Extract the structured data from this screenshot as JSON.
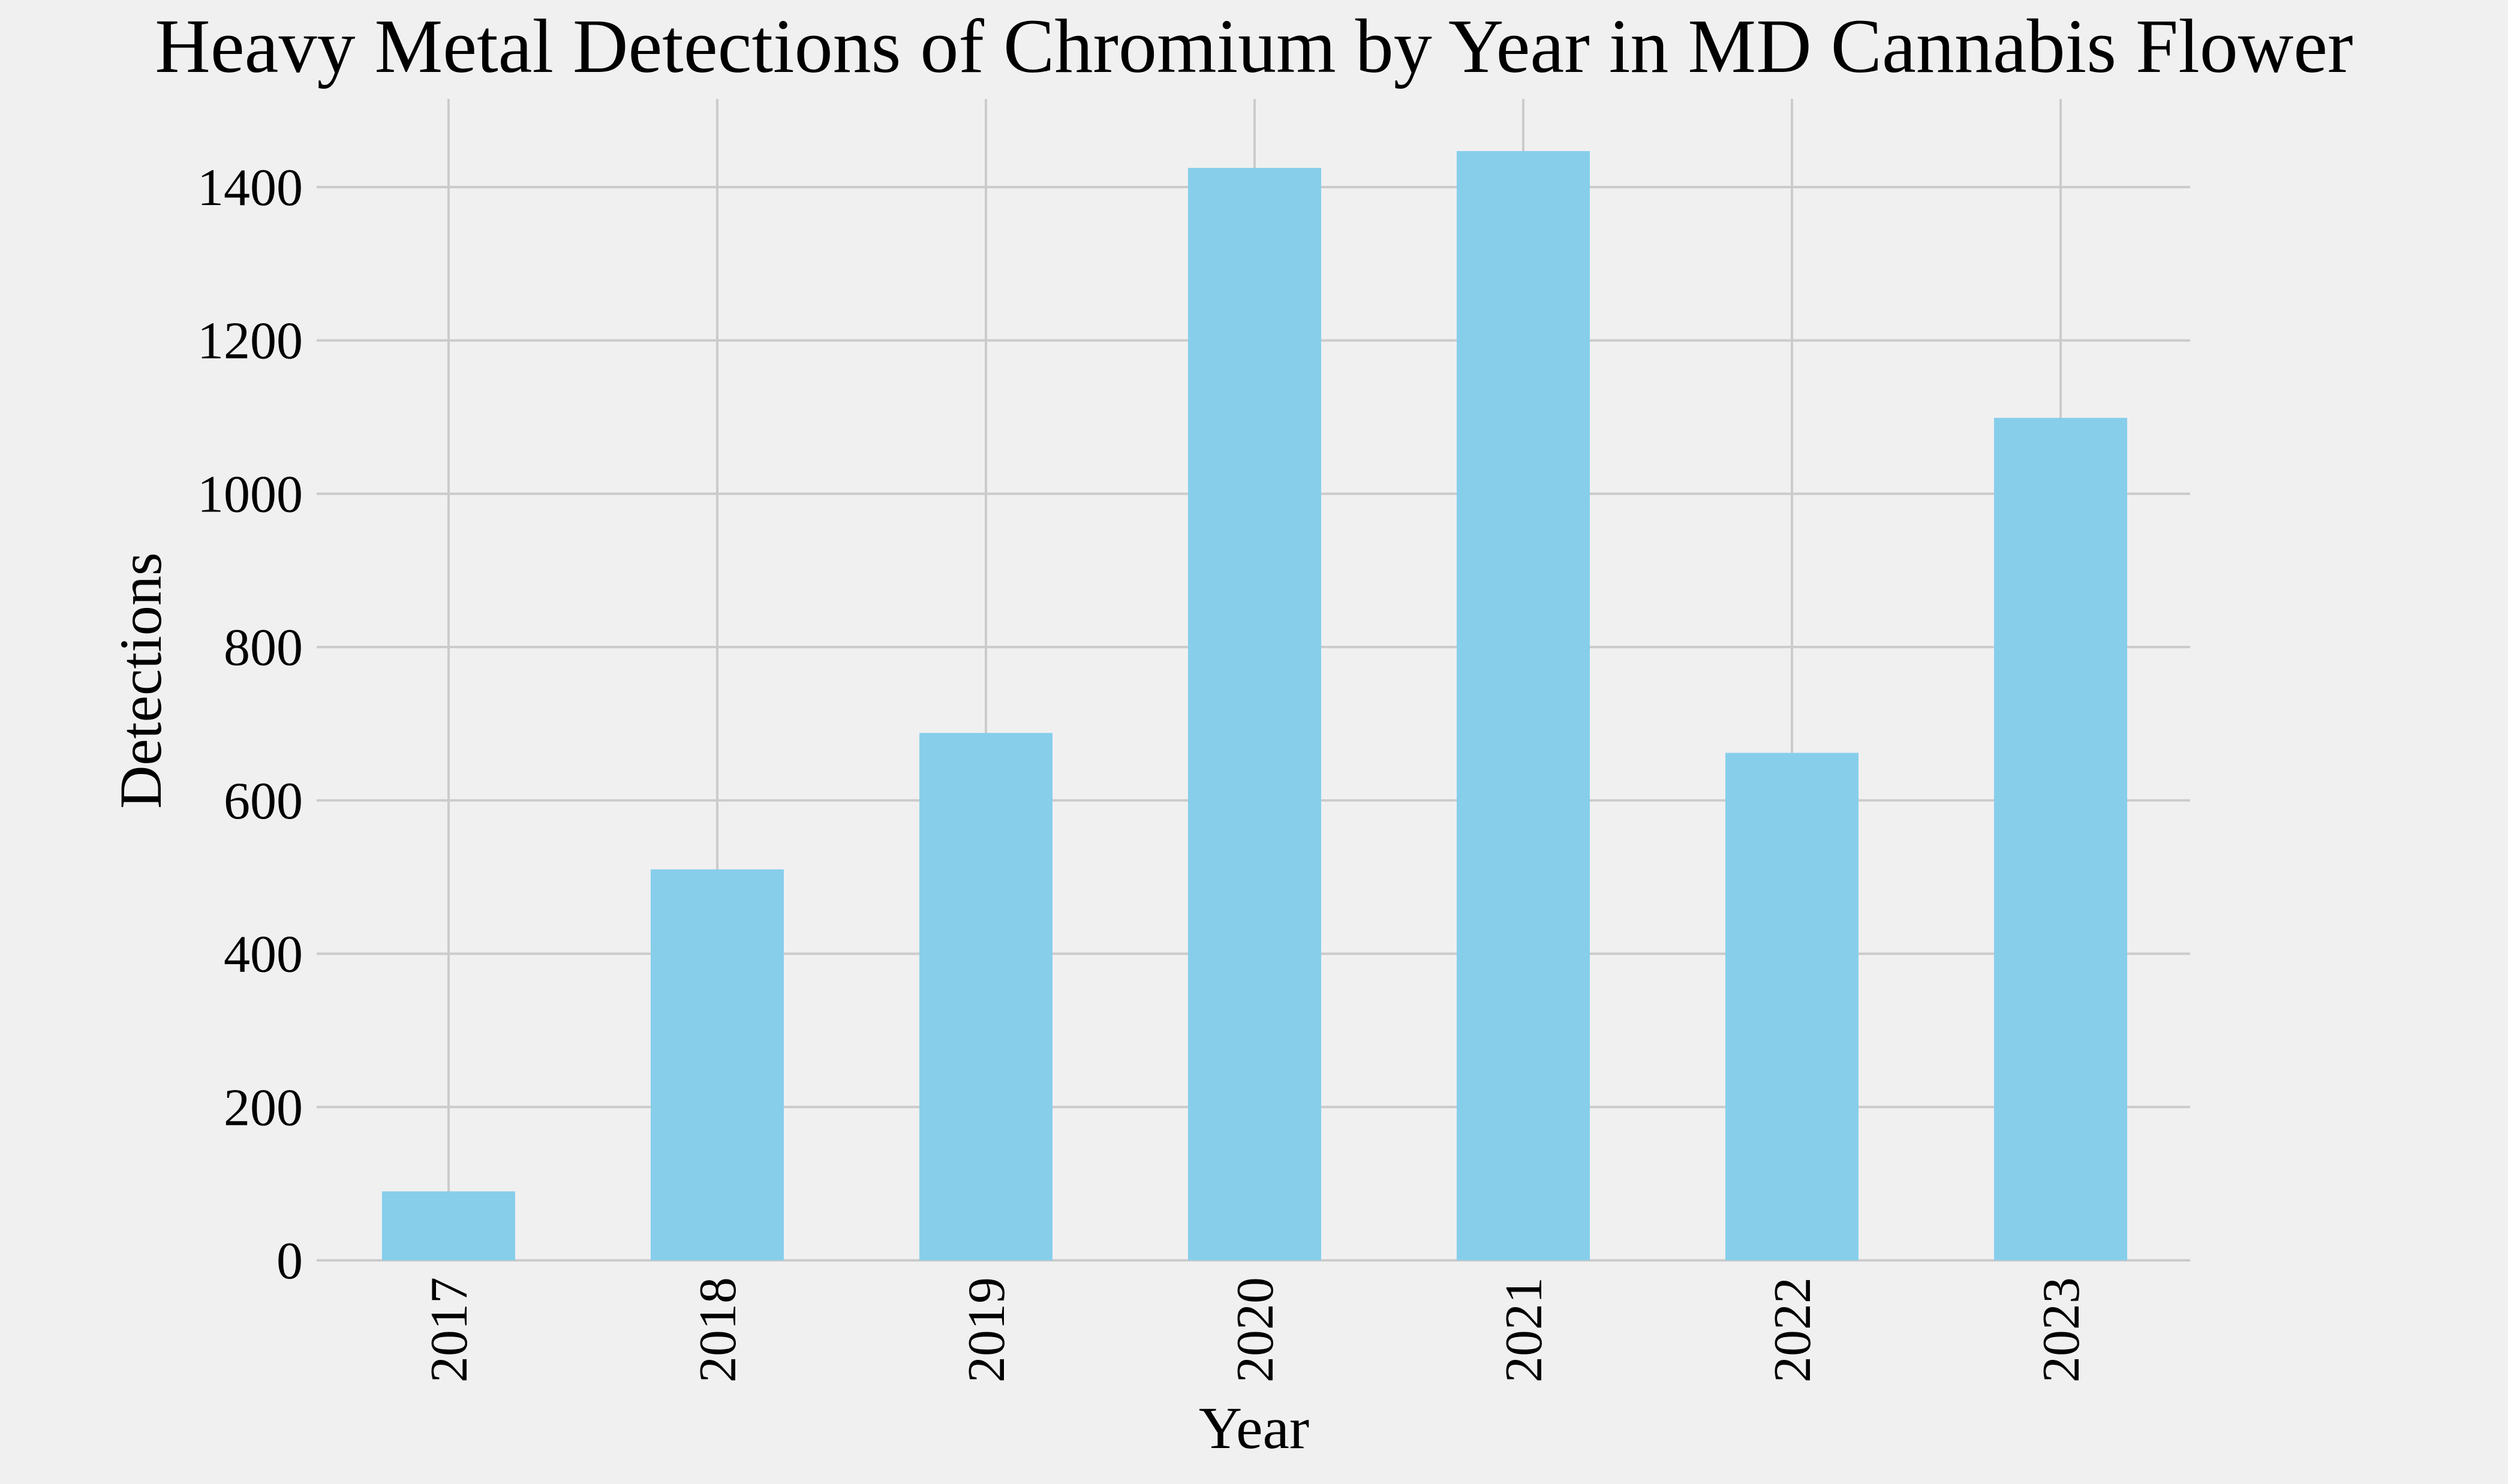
{
  "chart_data": {
    "type": "bar",
    "title": "Heavy Metal Detections of Chromium by Year in MD Cannabis Flower",
    "xlabel": "Year",
    "ylabel": "Detections",
    "categories": [
      "2017",
      "2018",
      "2019",
      "2020",
      "2021",
      "2022",
      "2023"
    ],
    "values": [
      90,
      510,
      688,
      1425,
      1447,
      662,
      1099
    ],
    "ylim": [
      0,
      1515
    ],
    "yticks": [
      0,
      200,
      400,
      600,
      800,
      1000,
      1200,
      1400
    ],
    "grid": true,
    "bar_color": "#87ceeb",
    "background": "#f0f0f0"
  }
}
